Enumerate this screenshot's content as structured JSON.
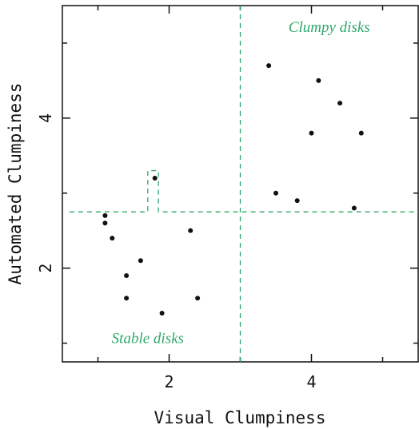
{
  "chart_data": {
    "type": "scatter",
    "xlabel": "Visual Clumpiness",
    "ylabel": "Automated Clumpiness",
    "xlim": [
      0.5,
      5.5
    ],
    "ylim": [
      0.75,
      5.5
    ],
    "x_ticks": [
      2,
      4
    ],
    "y_ticks": [
      2,
      4
    ],
    "grid": false,
    "points": [
      {
        "x": 1.1,
        "y": 2.7
      },
      {
        "x": 1.1,
        "y": 2.6
      },
      {
        "x": 1.2,
        "y": 2.4
      },
      {
        "x": 1.4,
        "y": 1.9
      },
      {
        "x": 1.4,
        "y": 1.6
      },
      {
        "x": 1.6,
        "y": 2.1
      },
      {
        "x": 1.8,
        "y": 3.2
      },
      {
        "x": 1.9,
        "y": 1.4
      },
      {
        "x": 2.3,
        "y": 2.5
      },
      {
        "x": 2.4,
        "y": 1.6
      },
      {
        "x": 3.4,
        "y": 4.7
      },
      {
        "x": 3.5,
        "y": 3.0
      },
      {
        "x": 3.8,
        "y": 2.9
      },
      {
        "x": 4.0,
        "y": 3.8
      },
      {
        "x": 4.1,
        "y": 4.5
      },
      {
        "x": 4.4,
        "y": 4.2
      },
      {
        "x": 4.6,
        "y": 2.8
      },
      {
        "x": 4.7,
        "y": 3.8
      }
    ],
    "divider_lines": {
      "color": "#2ea86a",
      "style": "dashed",
      "vertical_x": 3.0,
      "horizontal_path": [
        [
          0.6,
          2.75
        ],
        [
          1.7,
          2.75
        ],
        [
          1.7,
          3.3
        ],
        [
          1.85,
          3.3
        ],
        [
          1.85,
          2.75
        ],
        [
          5.5,
          2.75
        ]
      ]
    },
    "annotations": [
      {
        "text": "Clumpy disks",
        "x": 4.25,
        "y": 5.15,
        "color": "#2ea86a"
      },
      {
        "text": "Stable disks",
        "x": 1.7,
        "y": 1.0,
        "color": "#2ea86a"
      }
    ]
  }
}
